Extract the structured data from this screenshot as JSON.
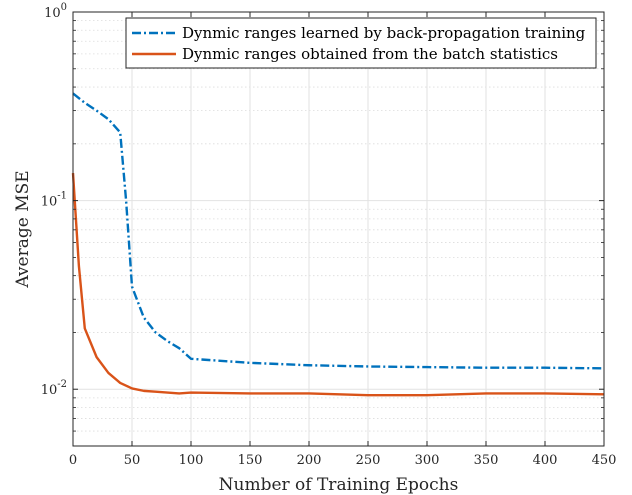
{
  "chart_data": {
    "type": "line",
    "title": "",
    "xlabel": "Number of Training Epochs",
    "ylabel": "Average MSE",
    "xlim": [
      0,
      450
    ],
    "ylim": [
      0.005,
      1
    ],
    "yscale": "log",
    "grid": true,
    "legend_position": "top-right",
    "x_ticks": [
      0,
      50,
      100,
      150,
      200,
      250,
      300,
      350,
      400,
      450
    ],
    "x_tick_labels": [
      "0",
      "50",
      "100",
      "150",
      "200",
      "250",
      "300",
      "350",
      "400",
      "450"
    ],
    "y_ticks": [
      {
        "value": 1,
        "base": "10",
        "exp": "0"
      },
      {
        "value": 0.1,
        "base": "10",
        "exp": "-1"
      },
      {
        "value": 0.01,
        "base": "10",
        "exp": "-2"
      }
    ],
    "series": [
      {
        "name": "Dynmic ranges learned by back-propagation training",
        "color": "#0072BD",
        "style": "dashdot",
        "x": [
          0,
          10,
          20,
          30,
          40,
          45,
          50,
          60,
          70,
          80,
          90,
          100,
          150,
          200,
          250,
          300,
          350,
          400,
          450
        ],
        "y": [
          0.37,
          0.33,
          0.3,
          0.27,
          0.23,
          0.1,
          0.035,
          0.024,
          0.02,
          0.018,
          0.0165,
          0.0145,
          0.0138,
          0.0134,
          0.0132,
          0.0131,
          0.013,
          0.013,
          0.0129
        ]
      },
      {
        "name": "Dynmic ranges obtained from the batch statistics",
        "color": "#D95319",
        "style": "solid",
        "x": [
          0,
          5,
          10,
          20,
          30,
          40,
          50,
          60,
          70,
          80,
          90,
          100,
          150,
          200,
          250,
          300,
          350,
          400,
          450
        ],
        "y": [
          0.14,
          0.045,
          0.021,
          0.0148,
          0.0122,
          0.0108,
          0.0101,
          0.0098,
          0.0097,
          0.0096,
          0.0095,
          0.0096,
          0.0095,
          0.0095,
          0.0093,
          0.0093,
          0.0095,
          0.0095,
          0.0094
        ]
      }
    ]
  }
}
